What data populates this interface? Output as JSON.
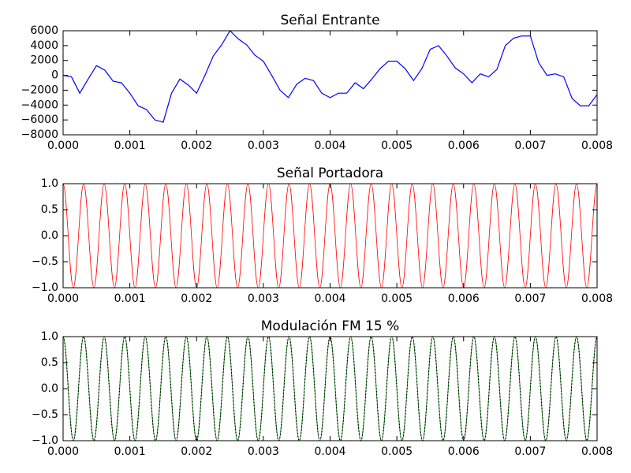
{
  "chart_data": [
    {
      "type": "line",
      "title": "Señal Entrante",
      "x": [
        0,
        0.000125,
        0.00025,
        0.000375,
        0.0005,
        0.000625,
        0.00075,
        0.000875,
        0.001,
        0.001125,
        0.00125,
        0.001375,
        0.0015,
        0.001625,
        0.00175,
        0.001875,
        0.002,
        0.002125,
        0.00225,
        0.002375,
        0.0025,
        0.002625,
        0.00275,
        0.002875,
        0.003,
        0.003125,
        0.00325,
        0.003375,
        0.0035,
        0.003625,
        0.00375,
        0.003875,
        0.004,
        0.004125,
        0.00425,
        0.004375,
        0.0045,
        0.004625,
        0.00475,
        0.004875,
        0.005,
        0.005125,
        0.00525,
        0.005375,
        0.0055,
        0.005625,
        0.00575,
        0.005875,
        0.006,
        0.006125,
        0.00625,
        0.006375,
        0.0065,
        0.006625,
        0.00675,
        0.006875,
        0.007,
        0.007125,
        0.00725,
        0.007375,
        0.0075,
        0.007625,
        0.00775,
        0.007875,
        0.008
      ],
      "series": [
        {
          "color": "#0000ff",
          "values": [
            0,
            -200,
            -2400,
            -500,
            1300,
            700,
            -800,
            -1000,
            -2400,
            -4100,
            -4600,
            -6000,
            -6300,
            -2400,
            -500,
            -1300,
            -2400,
            0,
            2600,
            4100,
            6000,
            4900,
            4100,
            2700,
            1900,
            0,
            -2000,
            -3000,
            -1200,
            -400,
            -700,
            -2400,
            -3000,
            -2400,
            -2400,
            -1000,
            -1800,
            -500,
            900,
            1900,
            1900,
            900,
            -700,
            900,
            3500,
            4000,
            2600,
            1000,
            200,
            -1000,
            200,
            -200,
            800,
            4000,
            5000,
            5300,
            5300,
            1700,
            0,
            200,
            -200,
            -3100,
            -4100,
            -4100,
            -2600
          ]
        }
      ],
      "xlim": [
        0,
        0.008
      ],
      "xticks": [
        {
          "value": 0,
          "label": "0.000"
        },
        {
          "value": 0.001,
          "label": "0.001"
        },
        {
          "value": 0.002,
          "label": "0.002"
        },
        {
          "value": 0.003,
          "label": "0.003"
        },
        {
          "value": 0.004,
          "label": "0.004"
        },
        {
          "value": 0.005,
          "label": "0.005"
        },
        {
          "value": 0.006,
          "label": "0.006"
        },
        {
          "value": 0.007,
          "label": "0.007"
        },
        {
          "value": 0.008,
          "label": "0.008"
        }
      ],
      "ylim": [
        -8000,
        6000
      ],
      "yticks": [
        {
          "value": -8000,
          "label": "−8000"
        },
        {
          "value": -6000,
          "label": "−6000"
        },
        {
          "value": -4000,
          "label": "−4000"
        },
        {
          "value": -2000,
          "label": "−2000"
        },
        0,
        2000,
        4000,
        6000
      ]
    },
    {
      "type": "line",
      "title": "Señal Portadora",
      "curve": "smooth",
      "x": [
        0,
        0.0001538,
        0.0003077,
        0.0004615,
        0.0006154,
        0.0007692,
        0.0009231,
        0.0010769,
        0.0012308,
        0.0013846,
        0.0015385,
        0.0016923,
        0.0018462,
        0.002,
        0.0021538,
        0.0023077,
        0.0024615,
        0.0026154,
        0.0027692,
        0.0029231,
        0.0030769,
        0.0032308,
        0.0033846,
        0.0035385,
        0.0036923,
        0.0038462,
        0.004,
        0.0041538,
        0.0043077,
        0.0044615,
        0.0046154,
        0.0047692,
        0.0049231,
        0.0050769,
        0.0052308,
        0.0053846,
        0.0055385,
        0.0056923,
        0.0058462,
        0.006,
        0.0061538,
        0.0063077,
        0.0064615,
        0.0066154,
        0.0067692,
        0.0069231,
        0.0070769,
        0.0072308,
        0.0073846,
        0.0075385,
        0.0076923,
        0.0078462,
        0.008
      ],
      "series": [
        {
          "color": "#ff0000",
          "values": [
            1,
            -1,
            1,
            -1,
            1,
            -1,
            1,
            -1,
            1,
            -1,
            1,
            -1,
            1,
            -1,
            1,
            -1,
            1,
            -1,
            1,
            -1,
            1,
            -1,
            1,
            -1,
            1,
            -1,
            1,
            -1,
            1,
            -1,
            1,
            -1,
            1,
            -1,
            1,
            -1,
            1,
            -1,
            1,
            -1,
            1,
            -1,
            1,
            -1,
            1,
            -1,
            1,
            -1,
            1,
            -1,
            1,
            -1,
            1
          ]
        }
      ],
      "xlim": [
        0,
        0.008
      ],
      "xticks": [
        {
          "value": 0,
          "label": "0.000"
        },
        {
          "value": 0.001,
          "label": "0.001"
        },
        {
          "value": 0.002,
          "label": "0.002"
        },
        {
          "value": 0.003,
          "label": "0.003"
        },
        {
          "value": 0.004,
          "label": "0.004"
        },
        {
          "value": 0.005,
          "label": "0.005"
        },
        {
          "value": 0.006,
          "label": "0.006"
        },
        {
          "value": 0.007,
          "label": "0.007"
        },
        {
          "value": 0.008,
          "label": "0.008"
        }
      ],
      "ylim": [
        -1,
        1
      ],
      "yticks": [
        {
          "value": -1,
          "label": "−1.0"
        },
        {
          "value": -0.5,
          "label": "−0.5"
        },
        {
          "value": 0,
          "label": "0.0"
        },
        {
          "value": 0.5,
          "label": "0.5"
        },
        {
          "value": 1,
          "label": "1.0"
        }
      ]
    },
    {
      "type": "line",
      "title": "Modulación FM 15 %",
      "curve": "smooth",
      "x": [
        0,
        0.0001538,
        0.0003077,
        0.0004615,
        0.0006154,
        0.0007692,
        0.0009231,
        0.0010769,
        0.0012308,
        0.0013846,
        0.0015385,
        0.0016923,
        0.0018462,
        0.002,
        0.0021538,
        0.0023077,
        0.0024615,
        0.0026154,
        0.0027692,
        0.0029231,
        0.0030769,
        0.0032308,
        0.0033846,
        0.0035385,
        0.0036923,
        0.0038462,
        0.004,
        0.0041538,
        0.0043077,
        0.0044615,
        0.0046154,
        0.0047692,
        0.0049231,
        0.0050769,
        0.0052308,
        0.0053846,
        0.0055385,
        0.0056923,
        0.0058462,
        0.006,
        0.0061538,
        0.0063077,
        0.0064615,
        0.0066154,
        0.0067692,
        0.0069231,
        0.0070769,
        0.0072308,
        0.0073846,
        0.0075385,
        0.0076923,
        0.0078462,
        0.008
      ],
      "series": [
        {
          "color": "#008000",
          "values": [
            1,
            -1,
            1,
            -1,
            1,
            -1,
            1,
            -1,
            1,
            -1,
            1,
            -1,
            1,
            -1,
            1,
            -1,
            1,
            -1,
            1,
            -1,
            1,
            -1,
            1,
            -1,
            1,
            -1,
            1,
            -1,
            1,
            -1,
            1,
            -1,
            1,
            -1,
            1,
            -1,
            1,
            -1,
            1,
            -1,
            1,
            -1,
            1,
            -1,
            1,
            -1,
            1,
            -1,
            1,
            -1,
            1,
            -1,
            1
          ]
        },
        {
          "color": "#000000",
          "dash": "dotted",
          "values": [
            1,
            -1,
            1,
            -1,
            1,
            -1,
            1,
            -1,
            1,
            -1,
            1,
            -1,
            1,
            -1,
            1,
            -1,
            1,
            -1,
            1,
            -1,
            1,
            -1,
            1,
            -1,
            1,
            -1,
            1,
            -1,
            1,
            -1,
            1,
            -1,
            1,
            -1,
            1,
            -1,
            1,
            -1,
            1,
            -1,
            1,
            -1,
            1,
            -1,
            1,
            -1,
            1,
            -1,
            1,
            -1,
            1,
            -1,
            1
          ]
        }
      ],
      "xlim": [
        0,
        0.008
      ],
      "xticks": [
        {
          "value": 0,
          "label": "0.000"
        },
        {
          "value": 0.001,
          "label": "0.001"
        },
        {
          "value": 0.002,
          "label": "0.002"
        },
        {
          "value": 0.003,
          "label": "0.003"
        },
        {
          "value": 0.004,
          "label": "0.004"
        },
        {
          "value": 0.005,
          "label": "0.005"
        },
        {
          "value": 0.006,
          "label": "0.006"
        },
        {
          "value": 0.007,
          "label": "0.007"
        },
        {
          "value": 0.008,
          "label": "0.008"
        }
      ],
      "ylim": [
        -1,
        1
      ],
      "yticks": [
        {
          "value": -1,
          "label": "−1.0"
        },
        {
          "value": -0.5,
          "label": "−0.5"
        },
        {
          "value": 0,
          "label": "0.0"
        },
        {
          "value": 0.5,
          "label": "0.5"
        },
        {
          "value": 1,
          "label": "1.0"
        }
      ]
    }
  ]
}
